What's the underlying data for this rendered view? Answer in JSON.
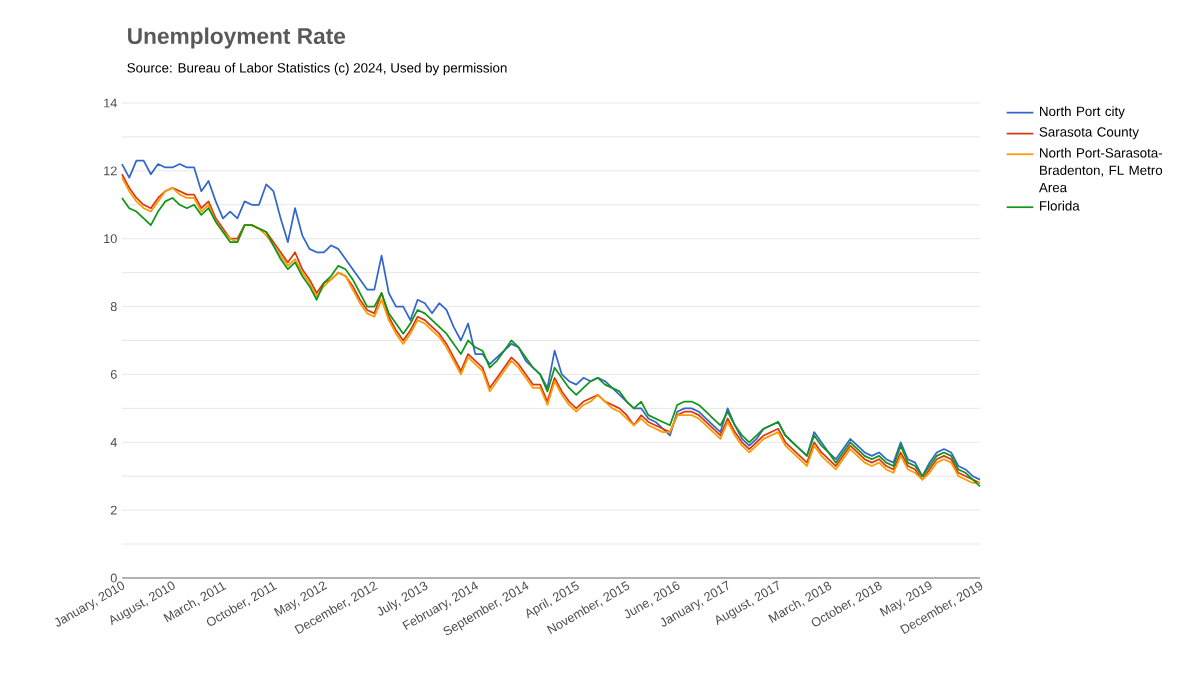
{
  "chart_data": {
    "type": "line",
    "title": "Unemployment Rate",
    "subtitle": "Source: Bureau of Labor Statistics (c) 2024, Used by permission",
    "categories": [
      "January, 2010",
      null,
      null,
      null,
      null,
      null,
      null,
      "August, 2010",
      null,
      null,
      null,
      null,
      null,
      null,
      "March, 2011",
      null,
      null,
      null,
      null,
      null,
      null,
      "October, 2011",
      null,
      null,
      null,
      null,
      null,
      null,
      "May, 2012",
      null,
      null,
      null,
      null,
      null,
      null,
      "December, 2012",
      null,
      null,
      null,
      null,
      null,
      null,
      "July, 2013",
      null,
      null,
      null,
      null,
      null,
      null,
      "February, 2014",
      null,
      null,
      null,
      null,
      null,
      null,
      "September, 2014",
      null,
      null,
      null,
      null,
      null,
      null,
      "April, 2015",
      null,
      null,
      null,
      null,
      null,
      null,
      "November, 2015",
      null,
      null,
      null,
      null,
      null,
      null,
      "June, 2016",
      null,
      null,
      null,
      null,
      null,
      null,
      "January, 2017",
      null,
      null,
      null,
      null,
      null,
      null,
      "August, 2017",
      null,
      null,
      null,
      null,
      null,
      null,
      "March, 2018",
      null,
      null,
      null,
      null,
      null,
      null,
      "October, 2018",
      null,
      null,
      null,
      null,
      null,
      null,
      "May, 2019",
      null,
      null,
      null,
      null,
      null,
      null,
      "December, 2019"
    ],
    "series": [
      {
        "name": "North Port city",
        "color": "#3366cc",
        "values": [
          12.2,
          11.8,
          12.3,
          12.3,
          11.9,
          12.2,
          12.1,
          12.1,
          12.2,
          12.1,
          12.1,
          11.4,
          11.7,
          11.1,
          10.6,
          10.8,
          10.6,
          11.1,
          11.0,
          11.0,
          11.6,
          11.4,
          10.6,
          9.9,
          10.9,
          10.1,
          9.7,
          9.6,
          9.6,
          9.8,
          9.7,
          9.4,
          9.1,
          8.8,
          8.5,
          8.5,
          9.5,
          8.4,
          8.0,
          8.0,
          7.6,
          8.2,
          8.1,
          7.8,
          8.1,
          7.9,
          7.4,
          7.0,
          7.5,
          6.6,
          6.6,
          6.3,
          6.5,
          6.7,
          6.9,
          6.8,
          6.4,
          6.2,
          6.0,
          5.6,
          6.7,
          6.0,
          5.8,
          5.7,
          5.9,
          5.8,
          5.9,
          5.8,
          5.6,
          5.4,
          5.2,
          5.0,
          5.0,
          4.7,
          4.6,
          4.4,
          4.2,
          4.9,
          5.0,
          5.0,
          4.9,
          4.7,
          4.5,
          4.3,
          5.0,
          4.5,
          4.1,
          3.9,
          4.1,
          4.4,
          4.5,
          4.6,
          4.2,
          4.0,
          3.8,
          3.6,
          4.3,
          4.0,
          3.7,
          3.5,
          3.8,
          4.1,
          3.9,
          3.7,
          3.6,
          3.7,
          3.5,
          3.4,
          4.0,
          3.5,
          3.4,
          3.0,
          3.4,
          3.7,
          3.8,
          3.7,
          3.3,
          3.2,
          3.0,
          2.9
        ]
      },
      {
        "name": "Sarasota County",
        "color": "#dc3912",
        "values": [
          11.9,
          11.5,
          11.2,
          11.0,
          10.9,
          11.2,
          11.4,
          11.5,
          11.4,
          11.3,
          11.3,
          10.9,
          11.1,
          10.6,
          10.3,
          10.0,
          10.0,
          10.4,
          10.4,
          10.3,
          10.2,
          9.9,
          9.6,
          9.3,
          9.6,
          9.1,
          8.8,
          8.4,
          8.7,
          8.8,
          9.0,
          8.9,
          8.6,
          8.2,
          7.9,
          7.8,
          8.4,
          7.7,
          7.3,
          7.0,
          7.3,
          7.7,
          7.6,
          7.4,
          7.2,
          6.9,
          6.5,
          6.1,
          6.6,
          6.4,
          6.2,
          5.6,
          5.9,
          6.2,
          6.5,
          6.3,
          6.0,
          5.7,
          5.7,
          5.2,
          5.9,
          5.5,
          5.2,
          5.0,
          5.2,
          5.3,
          5.4,
          5.2,
          5.1,
          5.0,
          4.8,
          4.5,
          4.8,
          4.6,
          4.5,
          4.4,
          4.3,
          4.8,
          4.9,
          4.9,
          4.8,
          4.6,
          4.4,
          4.2,
          4.7,
          4.3,
          4.0,
          3.8,
          4.0,
          4.2,
          4.3,
          4.4,
          4.0,
          3.8,
          3.6,
          3.4,
          4.0,
          3.7,
          3.5,
          3.3,
          3.6,
          3.9,
          3.7,
          3.5,
          3.4,
          3.5,
          3.3,
          3.2,
          3.7,
          3.3,
          3.2,
          2.9,
          3.2,
          3.5,
          3.6,
          3.5,
          3.1,
          3.0,
          2.9,
          2.8
        ]
      },
      {
        "name": "North Port-Sarasota-Bradenton, FL Metro Area",
        "color": "#ff9900",
        "values": [
          11.8,
          11.4,
          11.1,
          10.9,
          10.8,
          11.1,
          11.4,
          11.5,
          11.3,
          11.2,
          11.2,
          10.8,
          11.0,
          10.5,
          10.2,
          10.0,
          9.9,
          10.4,
          10.4,
          10.3,
          10.1,
          9.8,
          9.5,
          9.2,
          9.4,
          9.0,
          8.7,
          8.3,
          8.6,
          8.8,
          9.0,
          8.9,
          8.5,
          8.1,
          7.8,
          7.7,
          8.2,
          7.6,
          7.2,
          6.9,
          7.2,
          7.6,
          7.5,
          7.3,
          7.1,
          6.8,
          6.4,
          6.0,
          6.5,
          6.3,
          6.1,
          5.5,
          5.8,
          6.1,
          6.4,
          6.2,
          5.9,
          5.6,
          5.6,
          5.1,
          5.8,
          5.4,
          5.1,
          4.9,
          5.1,
          5.2,
          5.4,
          5.2,
          5.0,
          4.9,
          4.7,
          4.5,
          4.7,
          4.5,
          4.4,
          4.3,
          4.3,
          4.8,
          4.8,
          4.8,
          4.7,
          4.5,
          4.3,
          4.1,
          4.6,
          4.2,
          3.9,
          3.7,
          3.9,
          4.1,
          4.2,
          4.3,
          3.9,
          3.7,
          3.5,
          3.3,
          3.9,
          3.6,
          3.4,
          3.2,
          3.5,
          3.8,
          3.6,
          3.4,
          3.3,
          3.4,
          3.2,
          3.1,
          3.6,
          3.2,
          3.1,
          2.9,
          3.1,
          3.4,
          3.5,
          3.4,
          3.0,
          2.9,
          2.8,
          2.8
        ]
      },
      {
        "name": "Florida",
        "color": "#109618",
        "values": [
          11.2,
          10.9,
          10.8,
          10.6,
          10.4,
          10.8,
          11.1,
          11.2,
          11.0,
          10.9,
          11.0,
          10.7,
          10.9,
          10.5,
          10.2,
          9.9,
          9.9,
          10.4,
          10.4,
          10.3,
          10.2,
          9.8,
          9.4,
          9.1,
          9.3,
          8.9,
          8.6,
          8.2,
          8.7,
          8.9,
          9.2,
          9.1,
          8.8,
          8.4,
          8.0,
          8.0,
          8.4,
          7.8,
          7.5,
          7.2,
          7.5,
          7.9,
          7.8,
          7.6,
          7.4,
          7.2,
          6.9,
          6.6,
          7.0,
          6.8,
          6.7,
          6.2,
          6.4,
          6.7,
          7.0,
          6.8,
          6.5,
          6.2,
          6.0,
          5.5,
          6.2,
          5.9,
          5.6,
          5.4,
          5.6,
          5.8,
          5.9,
          5.7,
          5.6,
          5.5,
          5.2,
          5.0,
          5.2,
          4.8,
          4.7,
          4.6,
          4.5,
          5.1,
          5.2,
          5.2,
          5.1,
          4.9,
          4.7,
          4.5,
          4.9,
          4.5,
          4.2,
          4.0,
          4.2,
          4.4,
          4.5,
          4.6,
          4.2,
          4.0,
          3.8,
          3.6,
          4.2,
          3.9,
          3.7,
          3.4,
          3.7,
          4.0,
          3.8,
          3.6,
          3.5,
          3.6,
          3.4,
          3.3,
          3.9,
          3.4,
          3.3,
          3.0,
          3.3,
          3.6,
          3.7,
          3.6,
          3.2,
          3.1,
          2.9,
          2.7
        ]
      }
    ],
    "ylim": [
      0,
      14
    ],
    "yticks": [
      0,
      {
        "value": 1,
        "label": null
      },
      2,
      {
        "value": 3,
        "label": null
      },
      4,
      {
        "value": 5,
        "label": null
      },
      6,
      {
        "value": 7,
        "label": null
      },
      8,
      {
        "value": 9,
        "label": null
      },
      10,
      {
        "value": 11,
        "label": null
      },
      12,
      {
        "value": 13,
        "label": null
      },
      14
    ],
    "grid": "y",
    "legend": "top right",
    "marker": "none",
    "line_style": "solid"
  }
}
